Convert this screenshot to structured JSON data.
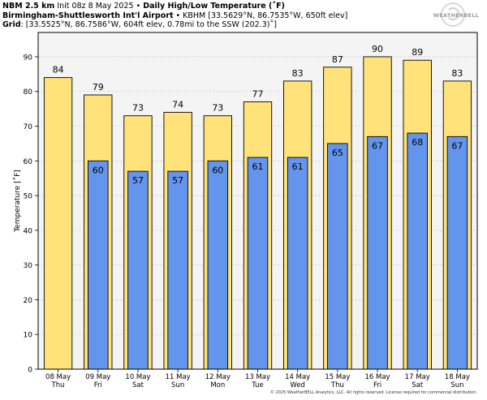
{
  "header": {
    "line1_bold": "NBM 2.5 km",
    "line1_init": "Init 08z 8 May 2025",
    "line1_bullet": " • ",
    "line1_title": "Daily High/Low Temperature (˚F)",
    "line2_bold": "Birmingham-Shuttlesworth Int'l Airport",
    "line2_rest": " • KBHM [33.5629°N, 86.7535°W, 650ft elev]",
    "line3_bold": "Grid",
    "line3_rest": ": [33.5525°N, 86.7586°W, 604ft elev, 0.78mi to the SSW (202.3)˚]"
  },
  "logo": {
    "text": "WEATHERBELL"
  },
  "footer": {
    "copyright": "© 2025 WeatherBELL Analytics, LLC. All rights reserved. License required for commercial distribution."
  },
  "colors": {
    "high": "#ffe27a",
    "low": "#6495ed",
    "plot_bg": "#f4f4f4",
    "grid": "#d3d3d3"
  },
  "chart_data": {
    "type": "bar",
    "ylabel": "Temperature [˚F]",
    "ylim": [
      0,
      97
    ],
    "yticks": [
      0,
      10,
      20,
      30,
      40,
      50,
      60,
      70,
      80,
      90
    ],
    "grid": true,
    "categories": [
      [
        "08 May",
        "Thu"
      ],
      [
        "09 May",
        "Fri"
      ],
      [
        "10 May",
        "Sat"
      ],
      [
        "11 May",
        "Sun"
      ],
      [
        "12 May",
        "Mon"
      ],
      [
        "13 May",
        "Tue"
      ],
      [
        "14 May",
        "Wed"
      ],
      [
        "15 May",
        "Thu"
      ],
      [
        "16 May",
        "Fri"
      ],
      [
        "17 May",
        "Sat"
      ],
      [
        "18 May",
        "Sun"
      ]
    ],
    "series": [
      {
        "key": "high",
        "values": [
          84,
          79,
          73,
          74,
          73,
          77,
          83,
          87,
          90,
          89,
          83
        ]
      },
      {
        "key": "low",
        "values": [
          null,
          60,
          57,
          57,
          60,
          61,
          61,
          65,
          67,
          68,
          67
        ]
      }
    ]
  }
}
